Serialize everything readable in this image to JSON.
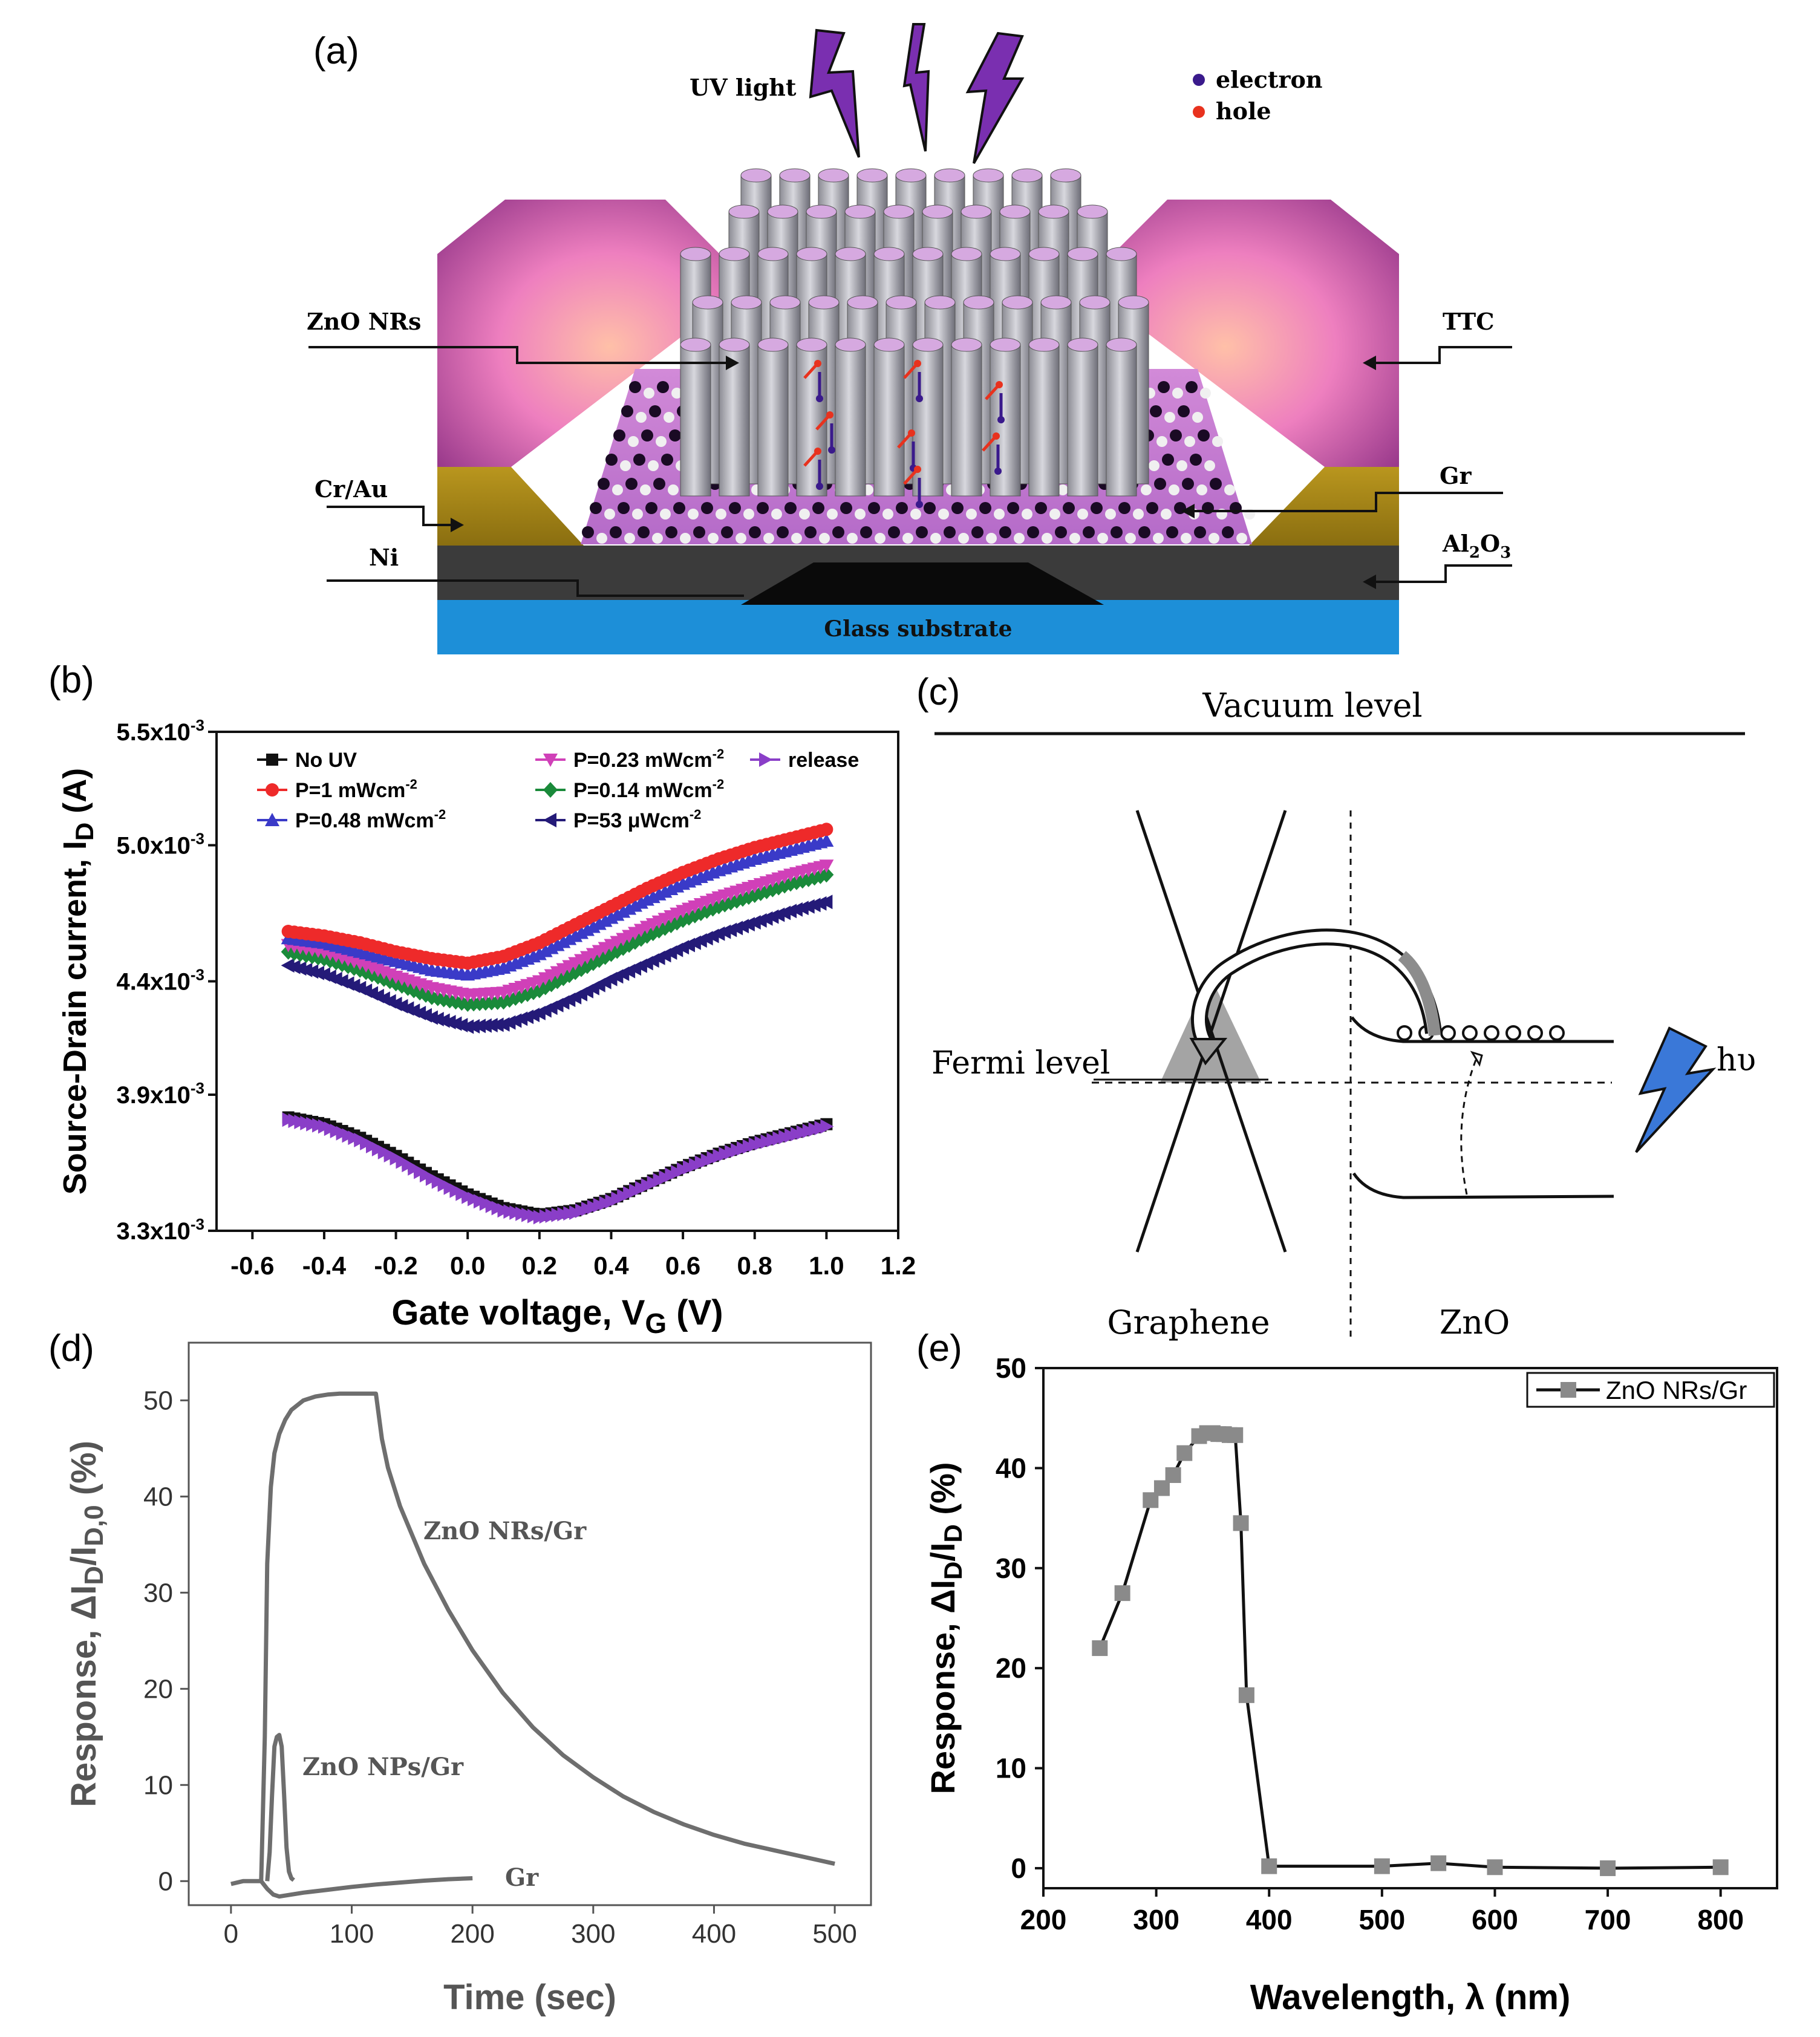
{
  "panel_labels": {
    "a": "(a)",
    "b": "(b)",
    "c": "(c)",
    "d": "(d)",
    "e": "(e)"
  },
  "colors": {
    "electron": "#3a1a8c",
    "hole": "#e8321e",
    "uv_bolt": "#7a2fb0",
    "hv_bolt": "#3a78d8",
    "glass": "#1d8fd8",
    "pink": "#ee7fbf"
  },
  "diagram_a": {
    "uv_light": "UV light",
    "legend": {
      "electron": "electron",
      "hole": "hole"
    },
    "labels": {
      "zno_nrs": "ZnO NRs",
      "ttc": "TTC",
      "cr_au": "Cr/Au",
      "gr": "Gr",
      "ni": "Ni",
      "al2o3_base": "Al",
      "al2o3_sub1": "2",
      "al2o3_o": "O",
      "al2o3_sub2": "3",
      "glass": "Glass substrate"
    }
  },
  "diagram_c": {
    "vacuum": "Vacuum level",
    "fermi": "Fermi level",
    "hv": "hυ",
    "graphene": "Graphene",
    "zno": "ZnO"
  },
  "chart_data": [
    {
      "id": "b",
      "type": "scatter",
      "title": "",
      "xlabel": "Gate voltage, V",
      "xlabel_sub": "G",
      "xlabel_unit": " (V)",
      "ylabel": "Source-Drain current, I",
      "ylabel_sub": "D",
      "ylabel_unit": " (A)",
      "xlim": [
        -0.7,
        1.2
      ],
      "ylim": [
        0.0033,
        0.0055
      ],
      "xticks": [
        "-0.6",
        "-0.4",
        "-0.2",
        "0.0",
        "0.2",
        "0.4",
        "0.6",
        "0.8",
        "1.0",
        "1.2"
      ],
      "yticks": [
        {
          "v": 0.0033,
          "m": "3.3x10",
          "e": "-3"
        },
        {
          "v": 0.0039,
          "m": "3.9x10",
          "e": "-3"
        },
        {
          "v": 0.0044,
          "m": "4.4x10",
          "e": "-3"
        },
        {
          "v": 0.005,
          "m": "5.0x10",
          "e": "-3"
        },
        {
          "v": 0.0055,
          "m": "5.5x10",
          "e": "-3"
        }
      ],
      "x": [
        -0.5,
        -0.4,
        -0.3,
        -0.2,
        -0.1,
        0.0,
        0.1,
        0.2,
        0.3,
        0.4,
        0.5,
        0.6,
        0.7,
        0.8,
        0.9,
        1.0
      ],
      "series": [
        {
          "name": "No UV",
          "color": "#111111",
          "marker": "square",
          "values": [
            0.0038,
            0.00377,
            0.00371,
            0.00363,
            0.00354,
            0.00346,
            0.0034,
            0.00337,
            0.00339,
            0.00344,
            0.00351,
            0.00358,
            0.00364,
            0.00369,
            0.00373,
            0.00377
          ]
        },
        {
          "name": "P=1 mWcm",
          "exp": "-2",
          "color": "#ee2a2a",
          "marker": "circle",
          "values": [
            0.00462,
            0.0046,
            0.00457,
            0.00453,
            0.0045,
            0.00448,
            0.00451,
            0.00457,
            0.00465,
            0.00473,
            0.00481,
            0.00488,
            0.00494,
            0.00499,
            0.00503,
            0.00507
          ]
        },
        {
          "name": "P=0.48 mWcm",
          "exp": "-2",
          "color": "#3a3ac8",
          "marker": "triangle-up",
          "values": [
            0.00459,
            0.00457,
            0.00453,
            0.00449,
            0.00445,
            0.00443,
            0.00446,
            0.00452,
            0.0046,
            0.00468,
            0.00476,
            0.00483,
            0.00489,
            0.00494,
            0.00498,
            0.00502
          ]
        },
        {
          "name": "P=0.23 mWcm",
          "exp": "-2",
          "color": "#d040b8",
          "marker": "triangle-down",
          "values": [
            0.00456,
            0.00453,
            0.00448,
            0.00442,
            0.00437,
            0.00434,
            0.00435,
            0.0044,
            0.00448,
            0.00456,
            0.00464,
            0.00471,
            0.00477,
            0.00482,
            0.00487,
            0.00491
          ]
        },
        {
          "name": "P=0.14 mWcm",
          "exp": "-2",
          "color": "#1a8a3a",
          "marker": "diamond",
          "values": [
            0.00453,
            0.0045,
            0.00445,
            0.00439,
            0.00433,
            0.0043,
            0.00431,
            0.00436,
            0.00444,
            0.00452,
            0.0046,
            0.00467,
            0.00473,
            0.00478,
            0.00483,
            0.00487
          ]
        },
        {
          "name": "P=53 μWcm",
          "exp": "-2",
          "color": "#241a78",
          "marker": "triangle-left",
          "values": [
            0.00447,
            0.00443,
            0.00437,
            0.0043,
            0.00424,
            0.0042,
            0.00421,
            0.00426,
            0.00433,
            0.00441,
            0.00448,
            0.00455,
            0.00461,
            0.00466,
            0.00471,
            0.00475
          ]
        },
        {
          "name": "release",
          "color": "#8a3ec8",
          "marker": "triangle-right",
          "values": [
            0.00379,
            0.00376,
            0.0037,
            0.00362,
            0.00353,
            0.00345,
            0.00339,
            0.00336,
            0.00338,
            0.00343,
            0.0035,
            0.00357,
            0.00363,
            0.00368,
            0.00372,
            0.00376
          ]
        }
      ]
    },
    {
      "id": "d",
      "type": "line",
      "title": "",
      "xlabel": "Time (sec)",
      "ylabel": "Response, ΔI",
      "ylabel_sub1": "D",
      "ylabel_mid": "/I",
      "ylabel_sub2": "D,0",
      "ylabel_unit": " (%)",
      "xlim": [
        -35,
        530
      ],
      "ylim": [
        -2.5,
        56
      ],
      "xticks": [
        "0",
        "100",
        "200",
        "300",
        "400",
        "500"
      ],
      "yticks": [
        "0",
        "10",
        "20",
        "30",
        "40",
        "50"
      ],
      "series": [
        {
          "name": "ZnO NRs/Gr",
          "x": [
            0,
            10,
            25,
            28,
            30,
            33,
            36,
            40,
            45,
            50,
            60,
            70,
            80,
            90,
            100,
            110,
            120,
            125,
            130,
            140,
            160,
            180,
            200,
            225,
            250,
            275,
            300,
            325,
            350,
            375,
            400,
            425,
            450,
            475,
            500
          ],
          "values": [
            -0.3,
            0.0,
            0.0,
            15,
            33,
            41,
            44.5,
            46.5,
            48,
            49,
            50,
            50.4,
            50.6,
            50.7,
            50.7,
            50.7,
            50.7,
            46,
            43,
            39,
            33,
            28.2,
            24,
            19.6,
            16,
            13.1,
            10.8,
            8.8,
            7.2,
            5.9,
            4.8,
            3.9,
            3.2,
            2.5,
            1.8
          ]
        },
        {
          "name": "ZnO NPs/Gr",
          "x": [
            30,
            32,
            34,
            36,
            38,
            40,
            42,
            44,
            46,
            48,
            50,
            52
          ],
          "values": [
            0.0,
            3,
            9,
            14,
            15,
            15.2,
            14,
            9,
            3.5,
            1,
            0.3,
            0.1
          ]
        },
        {
          "name": "Gr",
          "x": [
            25,
            30,
            35,
            40,
            60,
            80,
            100,
            120,
            140,
            160,
            180,
            200
          ],
          "values": [
            0.0,
            -0.8,
            -1.4,
            -1.6,
            -1.2,
            -0.9,
            -0.6,
            -0.35,
            -0.15,
            0.05,
            0.2,
            0.3
          ]
        }
      ]
    },
    {
      "id": "e",
      "type": "line",
      "title": "",
      "xlabel": "Wavelength, λ (nm)",
      "ylabel": "Response, ΔI",
      "ylabel_sub1": "D",
      "ylabel_mid": "/I",
      "ylabel_sub2": "D",
      "ylabel_unit": " (%)",
      "xlim": [
        200,
        850
      ],
      "ylim": [
        -2,
        50
      ],
      "xticks": [
        "200",
        "300",
        "400",
        "500",
        "600",
        "700",
        "800"
      ],
      "yticks": [
        "0",
        "10",
        "20",
        "30",
        "40",
        "50"
      ],
      "legend": "top-right",
      "series": [
        {
          "name": "ZnO NRs/Gr",
          "x": [
            250,
            270,
            295,
            305,
            315,
            325,
            338,
            345,
            350,
            355,
            360,
            365,
            370,
            375,
            380,
            400,
            500,
            550,
            600,
            700,
            800
          ],
          "values": [
            22,
            27.5,
            36.8,
            38,
            39.3,
            41.5,
            43.2,
            43.5,
            43.5,
            43.4,
            43.4,
            43.3,
            43.3,
            34.5,
            17.3,
            0.2,
            0.2,
            0.5,
            0.1,
            0.0,
            0.1
          ]
        }
      ]
    }
  ]
}
